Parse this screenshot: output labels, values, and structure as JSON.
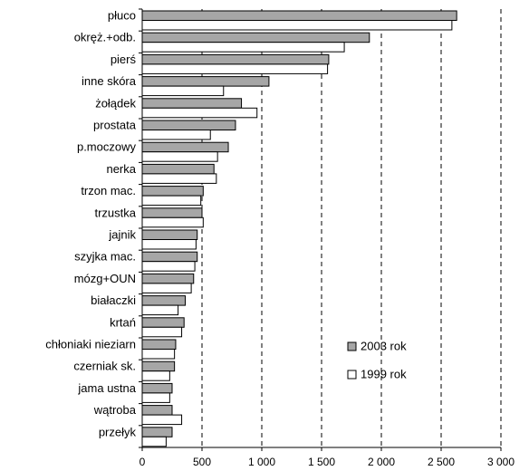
{
  "chart_data": {
    "type": "bar",
    "orientation": "horizontal",
    "categories": [
      "płuco",
      "okręż.+odb.",
      "pierś",
      "inne skóra",
      "żołądek",
      "prostata",
      "p.moczowy",
      "nerka",
      "trzon mac.",
      "trzustka",
      "jajnik",
      "szyjka mac.",
      "mózg+OUN",
      "białaczki",
      "krtań",
      "chłoniaki nieziarn",
      "czerniak sk.",
      "jama ustna",
      "wątroba",
      "przełyk"
    ],
    "series": [
      {
        "name": "2003 rok",
        "color": "#a6a6a6",
        "values": [
          2630,
          1900,
          1560,
          1060,
          830,
          780,
          720,
          600,
          510,
          500,
          460,
          460,
          430,
          360,
          350,
          280,
          270,
          250,
          250,
          250
        ]
      },
      {
        "name": "1999 rok",
        "color": "#ffffff",
        "values": [
          2590,
          1690,
          1550,
          680,
          960,
          570,
          630,
          620,
          490,
          510,
          450,
          440,
          410,
          300,
          330,
          270,
          230,
          230,
          330,
          200
        ]
      }
    ],
    "xlim": [
      0,
      3000
    ],
    "xticks": [
      0,
      500,
      1000,
      1500,
      2000,
      2500,
      3000
    ],
    "xtick_labels": [
      "0",
      "500",
      "1 000",
      "1 500",
      "2 000",
      "2 500",
      "3 000"
    ],
    "gridlines": "vertical dashed",
    "legend_position": "right-lower"
  }
}
